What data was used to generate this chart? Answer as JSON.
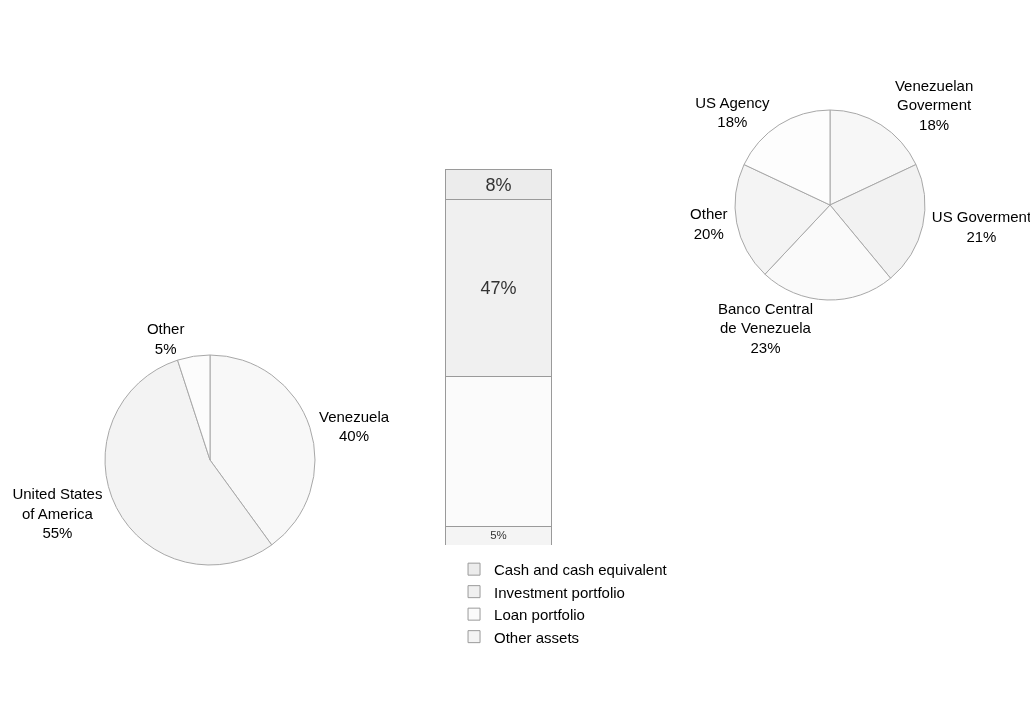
{
  "chart_data": [
    {
      "type": "bar",
      "stacked": true,
      "categories": [
        null
      ],
      "legend": "bottom",
      "series": [
        {
          "name": "Other assets",
          "color": "#f4f4f4",
          "values": [
            5
          ],
          "value_labels": [
            "5%"
          ]
        },
        {
          "name": "Loan portfolio",
          "color": "#fbfbfb",
          "values": [
            40
          ],
          "value_labels": [
            null
          ]
        },
        {
          "name": "Investment portfolio",
          "color": "#f0f0f0",
          "values": [
            47
          ],
          "value_labels": [
            "47%"
          ]
        },
        {
          "name": "Cash and cash equivalent",
          "color": "#ececec",
          "values": [
            8
          ],
          "value_labels": [
            "8%"
          ]
        }
      ]
    },
    {
      "type": "pie",
      "categories": [
        "Venezuelan Goverment",
        "US Goverment",
        "Banco Central de Venezuela",
        "Other",
        "US Agency"
      ],
      "values": [
        18,
        21,
        23,
        20,
        18
      ],
      "colors": [
        "#f7f7f7",
        "#f2f2f2",
        "#fafafa",
        "#f4f4f4",
        "#fdfdfd"
      ],
      "value_labels": [
        "18%",
        "21%",
        "23%",
        "20%",
        "18%"
      ]
    },
    {
      "type": "pie",
      "categories": [
        "Venezuela",
        "United States of America",
        "Other"
      ],
      "values": [
        40,
        55,
        5
      ],
      "colors": [
        "#f8f8f8",
        "#f3f3f3",
        "#fcfcfc"
      ],
      "value_labels": [
        "40%",
        "55%",
        "5%"
      ]
    }
  ]
}
